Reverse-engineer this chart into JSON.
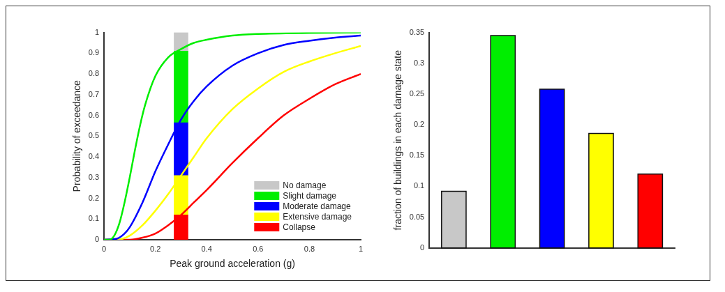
{
  "chart_data": [
    {
      "type": "line",
      "xlabel": "Peak ground acceleration (g)",
      "ylabel": "Probability of exceedance",
      "xlim": [
        0,
        1
      ],
      "ylim": [
        0,
        1
      ],
      "xticks": [
        0,
        0.2,
        0.4,
        0.6,
        0.8,
        1
      ],
      "yticks": [
        0,
        0.1,
        0.2,
        0.3,
        0.4,
        0.5,
        0.6,
        0.7,
        0.8,
        0.9,
        1
      ],
      "grid": false,
      "legend": "bottom right",
      "stacked": true,
      "series": [
        {
          "type": "line",
          "color": "#00ee00",
          "x": [
            0,
            0.02,
            0.04,
            0.06,
            0.08,
            0.1,
            0.12,
            0.14,
            0.16,
            0.2,
            0.25,
            0.3,
            0.35,
            0.4,
            0.5,
            0.6,
            0.8,
            1
          ],
          "values": [
            0,
            0,
            0.02,
            0.08,
            0.18,
            0.3,
            0.43,
            0.55,
            0.65,
            0.79,
            0.88,
            0.92,
            0.95,
            0.965,
            0.985,
            0.993,
            0.998,
            1
          ]
        },
        {
          "type": "line",
          "color": "#0000ff",
          "x": [
            0,
            0.05,
            0.08,
            0.1,
            0.15,
            0.2,
            0.25,
            0.3,
            0.35,
            0.4,
            0.5,
            0.6,
            0.7,
            0.8,
            0.9,
            1
          ],
          "values": [
            0,
            0.005,
            0.03,
            0.06,
            0.18,
            0.33,
            0.46,
            0.58,
            0.67,
            0.74,
            0.84,
            0.9,
            0.94,
            0.96,
            0.975,
            0.985
          ]
        },
        {
          "type": "line",
          "color": "#ffff00",
          "x": [
            0,
            0.05,
            0.1,
            0.15,
            0.2,
            0.25,
            0.3,
            0.35,
            0.4,
            0.5,
            0.6,
            0.7,
            0.8,
            0.9,
            1
          ],
          "values": [
            0,
            0,
            0.02,
            0.07,
            0.14,
            0.22,
            0.31,
            0.4,
            0.49,
            0.63,
            0.73,
            0.81,
            0.86,
            0.9,
            0.935
          ]
        },
        {
          "type": "line",
          "color": "#ff0000",
          "x": [
            0,
            0.1,
            0.15,
            0.2,
            0.25,
            0.3,
            0.35,
            0.4,
            0.5,
            0.6,
            0.7,
            0.8,
            0.9,
            1
          ],
          "values": [
            0,
            0,
            0.01,
            0.03,
            0.07,
            0.12,
            0.18,
            0.24,
            0.37,
            0.49,
            0.6,
            0.68,
            0.75,
            0.8
          ]
        },
        {
          "type": "bar",
          "name": "Collapse",
          "color": "#ff0000",
          "x": [
            0.3
          ],
          "values": [
            0.12
          ]
        },
        {
          "type": "bar",
          "name": "Extensive damage",
          "color": "#ffff00",
          "x": [
            0.3
          ],
          "values": [
            0.19
          ]
        },
        {
          "type": "bar",
          "name": "Moderate damage",
          "color": "#0000ff",
          "x": [
            0.3
          ],
          "values": [
            0.255
          ]
        },
        {
          "type": "bar",
          "name": "Slight damage",
          "color": "#00ee00",
          "x": [
            0.3
          ],
          "values": [
            0.345
          ]
        },
        {
          "type": "bar",
          "name": "No damage",
          "color": "#c8c8c8",
          "x": [
            0.3
          ],
          "values": [
            0.09
          ]
        }
      ]
    },
    {
      "type": "bar",
      "ylabel": "fraction of buildings in each damage state",
      "categories": [
        null,
        null,
        null,
        null,
        null
      ],
      "values": [
        0.092,
        0.345,
        0.258,
        0.186,
        0.12
      ],
      "colors": [
        "#c8c8c8",
        "#00ee00",
        "#0000ff",
        "#ffff00",
        "#ff0000"
      ],
      "ylim": [
        0,
        0.35
      ],
      "yticks": [
        0,
        0.05,
        0.1,
        0.15,
        0.2,
        0.25,
        0.3,
        0.35
      ],
      "grid": false
    }
  ]
}
